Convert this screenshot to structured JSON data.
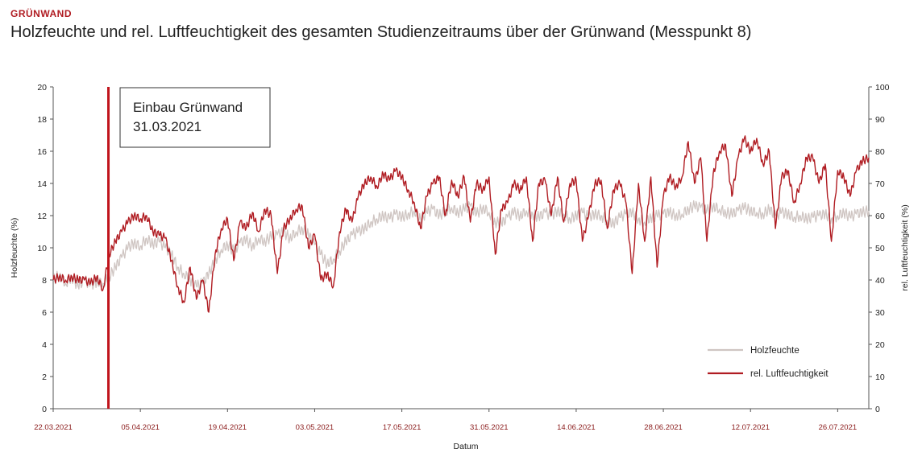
{
  "header": {
    "kicker": "GRÜNWAND",
    "title": "Holzfeuchte und rel. Luftfeuchtigkeit des gesamten Studienzeitraums über der Grünwand (Messpunkt 8)"
  },
  "colors": {
    "holzfeuchte": "#cfc5c2",
    "luftfeuchtigkeit": "#b01c22",
    "axis_date": "#8a1a1a",
    "marker": "#c0141c"
  },
  "chart_data": {
    "type": "line",
    "xlabel": "Datum",
    "ylabel_left": "Holzfeuchte (%)",
    "ylabel_right": "rel. Luftfeuchtigkeit (%)",
    "x_range": [
      "2021-03-22",
      "2021-07-31"
    ],
    "ylim_left": [
      0,
      20
    ],
    "ylim_right": [
      0,
      100
    ],
    "yticks_left": [
      0,
      2,
      4,
      6,
      8,
      10,
      12,
      14,
      16,
      18,
      20
    ],
    "yticks_right": [
      0,
      10,
      20,
      30,
      40,
      50,
      60,
      70,
      80,
      90,
      100
    ],
    "xticks": [
      {
        "date": "2021-03-22",
        "label": "22.03.2021"
      },
      {
        "date": "2021-04-05",
        "label": "05.04.2021"
      },
      {
        "date": "2021-04-19",
        "label": "19.04.2021"
      },
      {
        "date": "2021-05-03",
        "label": "03.05.2021"
      },
      {
        "date": "2021-05-17",
        "label": "17.05.2021"
      },
      {
        "date": "2021-05-31",
        "label": "31.05.2021"
      },
      {
        "date": "2021-06-14",
        "label": "14.06.2021"
      },
      {
        "date": "2021-06-28",
        "label": "28.06.2021"
      },
      {
        "date": "2021-07-12",
        "label": "12.07.2021"
      },
      {
        "date": "2021-07-26",
        "label": "26.07.2021"
      }
    ],
    "grid": false,
    "legend_position": "bottom-right",
    "annotation": {
      "date": "2021-03-31",
      "line1": "Einbau Grünwand",
      "line2": "31.03.2021"
    },
    "series": [
      {
        "name": "Holzfeuchte",
        "axis": "left",
        "x": [
          "2021-03-22",
          "2021-03-23",
          "2021-03-24",
          "2021-03-25",
          "2021-03-26",
          "2021-03-27",
          "2021-03-28",
          "2021-03-29",
          "2021-03-30",
          "2021-03-31",
          "2021-04-01",
          "2021-04-02",
          "2021-04-03",
          "2021-04-04",
          "2021-04-05",
          "2021-04-06",
          "2021-04-07",
          "2021-04-08",
          "2021-04-09",
          "2021-04-10",
          "2021-04-11",
          "2021-04-12",
          "2021-04-13",
          "2021-04-14",
          "2021-04-15",
          "2021-04-16",
          "2021-04-17",
          "2021-04-18",
          "2021-04-19",
          "2021-04-20",
          "2021-04-21",
          "2021-04-22",
          "2021-04-23",
          "2021-04-24",
          "2021-04-25",
          "2021-04-26",
          "2021-04-27",
          "2021-04-28",
          "2021-04-29",
          "2021-04-30",
          "2021-05-01",
          "2021-05-02",
          "2021-05-03",
          "2021-05-04",
          "2021-05-05",
          "2021-05-06",
          "2021-05-07",
          "2021-05-08",
          "2021-05-09",
          "2021-05-10",
          "2021-05-11",
          "2021-05-12",
          "2021-05-13",
          "2021-05-14",
          "2021-05-15",
          "2021-05-16",
          "2021-05-17",
          "2021-05-18",
          "2021-05-19",
          "2021-05-20",
          "2021-05-21",
          "2021-05-22",
          "2021-05-23",
          "2021-05-24",
          "2021-05-25",
          "2021-05-26",
          "2021-05-27",
          "2021-05-28",
          "2021-05-29",
          "2021-05-30",
          "2021-05-31",
          "2021-06-01",
          "2021-06-02",
          "2021-06-03",
          "2021-06-04",
          "2021-06-05",
          "2021-06-06",
          "2021-06-07",
          "2021-06-08",
          "2021-06-09",
          "2021-06-10",
          "2021-06-11",
          "2021-06-12",
          "2021-06-13",
          "2021-06-14",
          "2021-06-15",
          "2021-06-16",
          "2021-06-17",
          "2021-06-18",
          "2021-06-19",
          "2021-06-20",
          "2021-06-21",
          "2021-06-22",
          "2021-06-23",
          "2021-06-24",
          "2021-06-25",
          "2021-06-26",
          "2021-06-27",
          "2021-06-28",
          "2021-06-29",
          "2021-06-30",
          "2021-07-01",
          "2021-07-02",
          "2021-07-03",
          "2021-07-04",
          "2021-07-05",
          "2021-07-06",
          "2021-07-07",
          "2021-07-08",
          "2021-07-09",
          "2021-07-10",
          "2021-07-11",
          "2021-07-12",
          "2021-07-13",
          "2021-07-14",
          "2021-07-15",
          "2021-07-16",
          "2021-07-17",
          "2021-07-18",
          "2021-07-19",
          "2021-07-20",
          "2021-07-21",
          "2021-07-22",
          "2021-07-23",
          "2021-07-24",
          "2021-07-25",
          "2021-07-26",
          "2021-07-27",
          "2021-07-28",
          "2021-07-29",
          "2021-07-30",
          "2021-07-31"
        ],
        "values": [
          8.0,
          8.3,
          7.8,
          8.2,
          7.6,
          8.0,
          7.7,
          7.9,
          7.8,
          8.2,
          8.8,
          9.4,
          10.0,
          10.3,
          10.1,
          10.6,
          10.2,
          10.4,
          10.0,
          9.6,
          8.8,
          8.4,
          8.0,
          7.6,
          7.8,
          8.4,
          9.2,
          9.9,
          10.2,
          9.8,
          10.3,
          10.5,
          10.1,
          10.6,
          10.4,
          10.7,
          10.8,
          11.0,
          10.6,
          11.0,
          11.2,
          10.8,
          10.2,
          9.6,
          9.0,
          9.3,
          9.8,
          10.4,
          10.8,
          11.0,
          11.2,
          11.6,
          11.8,
          12.0,
          11.8,
          12.1,
          11.9,
          12.1,
          12.3,
          11.8,
          12.2,
          12.4,
          12.0,
          12.3,
          12.5,
          12.2,
          12.4,
          12.6,
          12.1,
          12.5,
          12.2,
          11.6,
          11.5,
          11.9,
          12.2,
          12.0,
          12.3,
          12.1,
          11.9,
          12.2,
          12.0,
          12.3,
          12.1,
          11.8,
          12.0,
          12.2,
          11.9,
          12.1,
          12.0,
          11.7,
          11.5,
          11.9,
          12.1,
          12.2,
          11.8,
          11.6,
          11.9,
          12.0,
          12.1,
          12.2,
          12.0,
          12.1,
          12.4,
          12.6,
          12.5,
          12.3,
          12.6,
          12.4,
          12.2,
          12.1,
          12.3,
          12.5,
          12.3,
          12.2,
          12.1,
          12.4,
          12.0,
          12.2,
          12.1,
          11.9,
          12.0,
          11.8,
          11.9,
          12.0,
          12.1,
          11.8,
          12.0,
          12.2,
          11.9,
          12.1,
          12.2,
          12.3
        ]
      },
      {
        "name": "rel. Luftfeuchtigkeit",
        "axis": "right",
        "x": [
          "2021-03-22",
          "2021-03-23",
          "2021-03-24",
          "2021-03-25",
          "2021-03-26",
          "2021-03-27",
          "2021-03-28",
          "2021-03-29",
          "2021-03-30",
          "2021-03-31",
          "2021-04-01",
          "2021-04-02",
          "2021-04-03",
          "2021-04-04",
          "2021-04-05",
          "2021-04-06",
          "2021-04-07",
          "2021-04-08",
          "2021-04-09",
          "2021-04-10",
          "2021-04-11",
          "2021-04-12",
          "2021-04-13",
          "2021-04-14",
          "2021-04-15",
          "2021-04-16",
          "2021-04-17",
          "2021-04-18",
          "2021-04-19",
          "2021-04-20",
          "2021-04-21",
          "2021-04-22",
          "2021-04-23",
          "2021-04-24",
          "2021-04-25",
          "2021-04-26",
          "2021-04-27",
          "2021-04-28",
          "2021-04-29",
          "2021-04-30",
          "2021-05-01",
          "2021-05-02",
          "2021-05-03",
          "2021-05-04",
          "2021-05-05",
          "2021-05-06",
          "2021-05-07",
          "2021-05-08",
          "2021-05-09",
          "2021-05-10",
          "2021-05-11",
          "2021-05-12",
          "2021-05-13",
          "2021-05-14",
          "2021-05-15",
          "2021-05-16",
          "2021-05-17",
          "2021-05-18",
          "2021-05-19",
          "2021-05-20",
          "2021-05-21",
          "2021-05-22",
          "2021-05-23",
          "2021-05-24",
          "2021-05-25",
          "2021-05-26",
          "2021-05-27",
          "2021-05-28",
          "2021-05-29",
          "2021-05-30",
          "2021-05-31",
          "2021-06-01",
          "2021-06-02",
          "2021-06-03",
          "2021-06-04",
          "2021-06-05",
          "2021-06-06",
          "2021-06-07",
          "2021-06-08",
          "2021-06-09",
          "2021-06-10",
          "2021-06-11",
          "2021-06-12",
          "2021-06-13",
          "2021-06-14",
          "2021-06-15",
          "2021-06-16",
          "2021-06-17",
          "2021-06-18",
          "2021-06-19",
          "2021-06-20",
          "2021-06-21",
          "2021-06-22",
          "2021-06-23",
          "2021-06-24",
          "2021-06-25",
          "2021-06-26",
          "2021-06-27",
          "2021-06-28",
          "2021-06-29",
          "2021-06-30",
          "2021-07-01",
          "2021-07-02",
          "2021-07-03",
          "2021-07-04",
          "2021-07-05",
          "2021-07-06",
          "2021-07-07",
          "2021-07-08",
          "2021-07-09",
          "2021-07-10",
          "2021-07-11",
          "2021-07-12",
          "2021-07-13",
          "2021-07-14",
          "2021-07-15",
          "2021-07-16",
          "2021-07-17",
          "2021-07-18",
          "2021-07-19",
          "2021-07-20",
          "2021-07-21",
          "2021-07-22",
          "2021-07-23",
          "2021-07-24",
          "2021-07-25",
          "2021-07-26",
          "2021-07-27",
          "2021-07-28",
          "2021-07-29",
          "2021-07-30",
          "2021-07-31"
        ],
        "values": [
          40,
          41,
          40,
          41,
          40,
          40,
          39,
          41,
          37,
          48,
          52,
          55,
          58,
          60,
          59,
          60,
          55,
          54,
          53,
          46,
          38,
          33,
          44,
          34,
          40,
          30,
          48,
          56,
          59,
          46,
          58,
          56,
          61,
          55,
          62,
          60,
          42,
          56,
          59,
          62,
          63,
          50,
          54,
          40,
          42,
          38,
          55,
          62,
          58,
          66,
          70,
          72,
          69,
          73,
          71,
          74,
          72,
          68,
          64,
          56,
          66,
          70,
          72,
          60,
          71,
          66,
          72,
          58,
          70,
          68,
          72,
          48,
          62,
          64,
          70,
          68,
          72,
          52,
          70,
          71,
          60,
          72,
          58,
          70,
          71,
          52,
          60,
          70,
          71,
          56,
          68,
          70,
          64,
          42,
          70,
          52,
          72,
          44,
          66,
          72,
          69,
          72,
          83,
          70,
          78,
          52,
          73,
          80,
          82,
          66,
          78,
          84,
          80,
          84,
          76,
          80,
          56,
          72,
          74,
          64,
          70,
          78,
          78,
          70,
          76,
          52,
          74,
          72,
          66,
          74,
          77,
          78
        ]
      }
    ]
  },
  "legend": [
    {
      "label": "Holzfeuchte"
    },
    {
      "label": "rel. Luftfeuchtigkeit"
    }
  ]
}
